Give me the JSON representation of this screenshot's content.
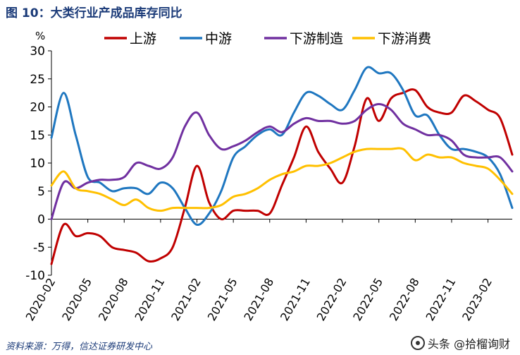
{
  "figure": {
    "title": "图 10：大类行业产成品库存同比",
    "source": "资料来源：万得，信达证券研发中心",
    "watermark": "头条 @拾榴询财",
    "unit_label": "%"
  },
  "chart_data": {
    "type": "line",
    "title": "图 10：大类行业产成品库存同比",
    "xlabel": "",
    "ylabel": "%",
    "ylim": [
      -10,
      30
    ],
    "yticks": [
      -10,
      -5,
      0,
      5,
      10,
      15,
      20,
      25,
      30
    ],
    "grid": false,
    "legend_position": "top",
    "x_labels": [
      "2020-02",
      "2020-05",
      "2020-08",
      "2020-11",
      "2021-02",
      "2021-05",
      "2021-08",
      "2021-11",
      "2022-02",
      "2022-05",
      "2022-08",
      "2022-11",
      "2023-02"
    ],
    "x": [
      "2020-02",
      "2020-03",
      "2020-04",
      "2020-05",
      "2020-06",
      "2020-07",
      "2020-08",
      "2020-09",
      "2020-10",
      "2020-11",
      "2020-12",
      "2021-01",
      "2021-02",
      "2021-03",
      "2021-04",
      "2021-05",
      "2021-06",
      "2021-07",
      "2021-08",
      "2021-09",
      "2021-10",
      "2021-11",
      "2021-12",
      "2022-01",
      "2022-02",
      "2022-03",
      "2022-04",
      "2022-05",
      "2022-06",
      "2022-07",
      "2022-08",
      "2022-09",
      "2022-10",
      "2022-11",
      "2022-12",
      "2023-01",
      "2023-02",
      "2023-03",
      "2023-04"
    ],
    "series": [
      {
        "name": "上游",
        "color": "#c00000",
        "values": [
          -8,
          -1,
          -3,
          -2.5,
          -3,
          -5,
          -5.5,
          -6,
          -7.5,
          -7,
          -5,
          2,
          9.5,
          3,
          0,
          1.5,
          1.5,
          1.5,
          1,
          6,
          11,
          16.5,
          12,
          9,
          6.5,
          13,
          21.5,
          17.5,
          21.5,
          22.5,
          23,
          20,
          19,
          19,
          22,
          21,
          19.5,
          18,
          11.5
        ]
      },
      {
        "name": "中游",
        "color": "#1f77c0",
        "values": [
          14.5,
          22.5,
          15,
          7.5,
          6.5,
          5,
          5.5,
          5.5,
          4.5,
          6.5,
          5.5,
          2,
          -1,
          1,
          5,
          11,
          13,
          15,
          16,
          15,
          19,
          22.5,
          22,
          20.5,
          19.5,
          23,
          27,
          26,
          26,
          23,
          18.5,
          18.5,
          15,
          12.5,
          12.5,
          12,
          11,
          8,
          2
        ]
      },
      {
        "name": "下游制造",
        "color": "#7030a0",
        "values": [
          0,
          6.5,
          5.5,
          6.5,
          7,
          7,
          7.5,
          10,
          9.5,
          9,
          11,
          16.5,
          19,
          15,
          12.5,
          13,
          14,
          15.5,
          16.5,
          15.5,
          17,
          18,
          17.5,
          17.5,
          17,
          17.5,
          19.5,
          20.5,
          19.5,
          17,
          16,
          15,
          15,
          14,
          11.5,
          11,
          11,
          11,
          8.5
        ]
      },
      {
        "name": "下游消费",
        "color": "#ffc000",
        "values": [
          6,
          8.5,
          5.5,
          5,
          4.5,
          3.5,
          2.5,
          3.5,
          2,
          1.5,
          2,
          2,
          2,
          2,
          2.5,
          4,
          4.5,
          5.5,
          7,
          8,
          8.5,
          9.5,
          9.5,
          10,
          11,
          12,
          12.5,
          12.5,
          12.5,
          12.5,
          10.5,
          11.5,
          11,
          11,
          10,
          9.5,
          9,
          7,
          4.5
        ]
      }
    ]
  }
}
